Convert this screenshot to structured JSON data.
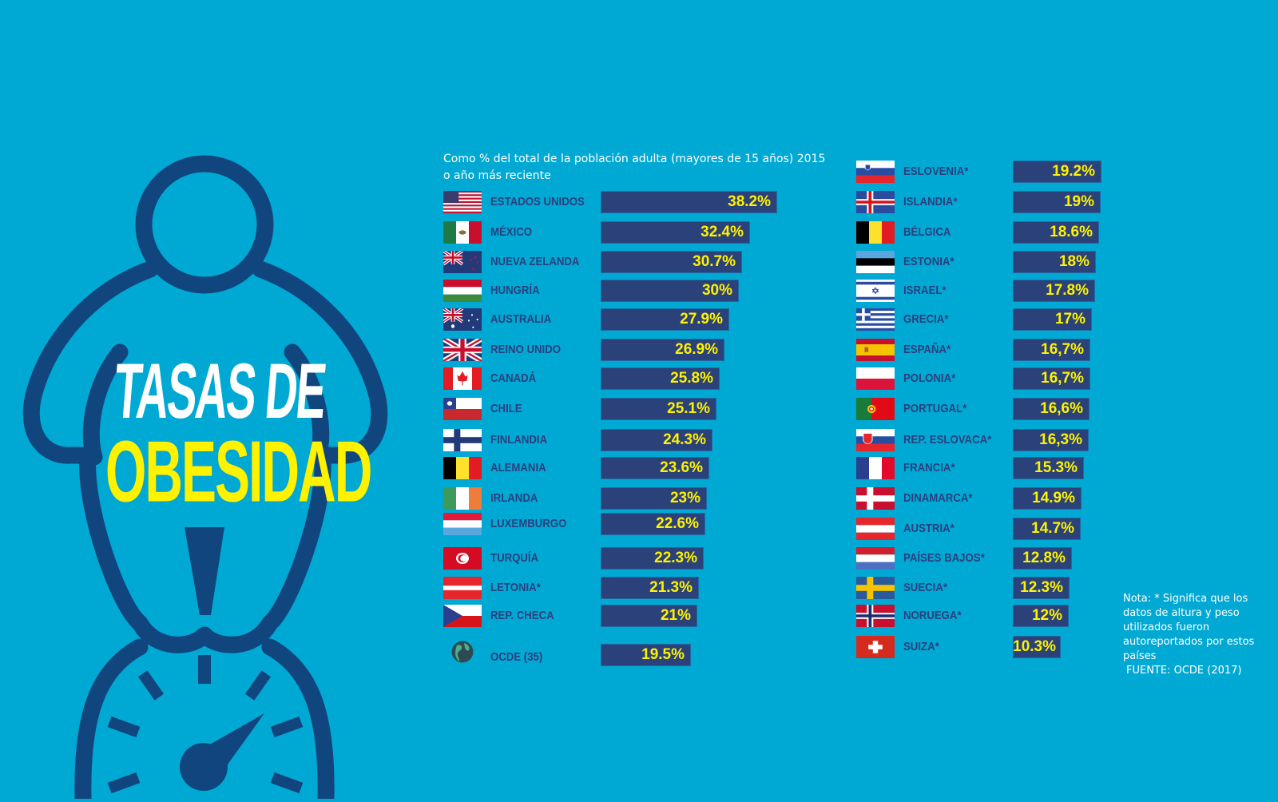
{
  "header": {
    "title_line1": "TASAS DE",
    "title_line2": "OBESIDAD",
    "subtitle": "Como % del total de la población adulta (mayores de 15 años) 2015 o año más reciente"
  },
  "note": {
    "text": "Nota: * Significa que los datos de altura y peso utilizados fueron autoreportados por estos países",
    "source": "FUENTE: OCDE (2017)"
  },
  "colors": {
    "background": "#00a9d3",
    "bar": "#2a4279",
    "value_text": "#fff200",
    "label_text": "#2b3f7f",
    "figure": "#11457e"
  },
  "left_column": [
    {
      "name": "ESTADOS UNIDOS",
      "value": "38.2%",
      "flag": "us-flag-icon"
    },
    {
      "name": "MÉXICO",
      "value": "32.4%",
      "flag": "mexico-flag-icon"
    },
    {
      "name": "NUEVA ZELANDA",
      "value": "30.7%",
      "flag": "new-zealand-flag-icon"
    },
    {
      "name": "HUNGRÍA",
      "value": "30%",
      "flag": "hungary-flag-icon"
    },
    {
      "name": "AUSTRALIA",
      "value": "27.9%",
      "flag": "australia-flag-icon"
    },
    {
      "name": "REINO UNIDO",
      "value": "26.9%",
      "flag": "uk-flag-icon"
    },
    {
      "name": "CANADÁ",
      "value": "25.8%",
      "flag": "canada-flag-icon"
    },
    {
      "name": "CHILE",
      "value": "25.1%",
      "flag": "chile-flag-icon"
    },
    {
      "name": "FINLANDIA",
      "value": "24.3%",
      "flag": "finland-flag-icon"
    },
    {
      "name": "ALEMANIA",
      "value": "23.6%",
      "flag": "belgium-style-flag-icon"
    },
    {
      "name": "IRLANDA",
      "value": "23%",
      "flag": "ireland-flag-icon"
    },
    {
      "name": "LUXEMBURGO",
      "value": "22.6%",
      "flag": "luxembourg-flag-icon"
    },
    {
      "name": "TURQUÍA",
      "value": "22.3%",
      "flag": "tunisia-style-flag-icon"
    },
    {
      "name": "LETONIA*",
      "value": "21.3%",
      "flag": "latvia-flag-icon"
    },
    {
      "name": "REP. CHECA",
      "value": "21%",
      "flag": "czech-flag-icon"
    },
    {
      "name": "OCDE (35)",
      "value": "19.5%",
      "flag": "globe-icon"
    }
  ],
  "right_column": [
    {
      "name": "ESLOVENIA*",
      "value": "19.2%",
      "flag": "slovenia-flag-icon"
    },
    {
      "name": "ISLANDIA*",
      "value": "19%",
      "flag": "iceland-flag-icon"
    },
    {
      "name": "BÉLGICA",
      "value": "18.6%",
      "flag": "belgium-flag-icon"
    },
    {
      "name": "ESTONIA*",
      "value": "18%",
      "flag": "estonia-flag-icon"
    },
    {
      "name": "ISRAEL*",
      "value": "17.8%",
      "flag": "israel-flag-icon"
    },
    {
      "name": "GRECIA*",
      "value": "17%",
      "flag": "greece-flag-icon"
    },
    {
      "name": "ESPAÑA*",
      "value": "16,7%",
      "flag": "spain-flag-icon"
    },
    {
      "name": "POLONIA*",
      "value": "16,7%",
      "flag": "poland-flag-icon"
    },
    {
      "name": "PORTUGAL*",
      "value": "16,6%",
      "flag": "portugal-flag-icon"
    },
    {
      "name": "REP. ESLOVACA*",
      "value": "16,3%",
      "flag": "slovakia-flag-icon"
    },
    {
      "name": "FRANCIA*",
      "value": "15.3%",
      "flag": "france-flag-icon"
    },
    {
      "name": "DINAMARCA*",
      "value": "14.9%",
      "flag": "denmark-flag-icon"
    },
    {
      "name": "AUSTRIA*",
      "value": "14.7%",
      "flag": "austria-flag-icon"
    },
    {
      "name": "PAÍSES BAJOS*",
      "value": "12.8%",
      "flag": "netherlands-flag-icon"
    },
    {
      "name": "SUECIA*",
      "value": "12.3%",
      "flag": "sweden-flag-icon"
    },
    {
      "name": "NORUEGA*",
      "value": "12%",
      "flag": "norway-flag-icon"
    },
    {
      "name": "SUIZA*",
      "value": "10.3%",
      "flag": "switzerland-flag-icon"
    }
  ],
  "chart_data": {
    "type": "bar",
    "orientation": "horizontal",
    "title": "TASAS DE OBESIDAD",
    "subtitle": "Como % del total de la población adulta (mayores de 15 años) 2015 o año más reciente",
    "xlabel": "",
    "ylabel": "",
    "unit": "%",
    "grid": false,
    "legend": null,
    "categories": [
      "ESTADOS UNIDOS",
      "MÉXICO",
      "NUEVA ZELANDA",
      "HUNGRÍA",
      "AUSTRALIA",
      "REINO UNIDO",
      "CANADÁ",
      "CHILE",
      "FINLANDIA",
      "ALEMANIA",
      "IRLANDA",
      "LUXEMBURGO",
      "TURQUÍA",
      "LETONIA*",
      "REP. CHECA",
      "OCDE (35)",
      "ESLOVENIA*",
      "ISLANDIA*",
      "BÉLGICA",
      "ESTONIA*",
      "ISRAEL*",
      "GRECIA*",
      "ESPAÑA*",
      "POLONIA*",
      "PORTUGAL*",
      "REP. ESLOVACA*",
      "FRANCIA*",
      "DINAMARCA*",
      "AUSTRIA*",
      "PAÍSES BAJOS*",
      "SUECIA*",
      "NORUEGA*",
      "SUIZA*"
    ],
    "values": [
      38.2,
      32.4,
      30.7,
      30,
      27.9,
      26.9,
      25.8,
      25.1,
      24.3,
      23.6,
      23,
      22.6,
      22.3,
      21.3,
      21,
      19.5,
      19.2,
      19,
      18.6,
      18,
      17.8,
      17,
      16.7,
      16.7,
      16.6,
      16.3,
      15.3,
      14.9,
      14.7,
      12.8,
      12.3,
      12,
      10.3
    ],
    "annotations": [
      "* Significa que los datos de altura y peso utilizados fueron autoreportados por estos países",
      "FUENTE: OCDE (2017)"
    ]
  }
}
